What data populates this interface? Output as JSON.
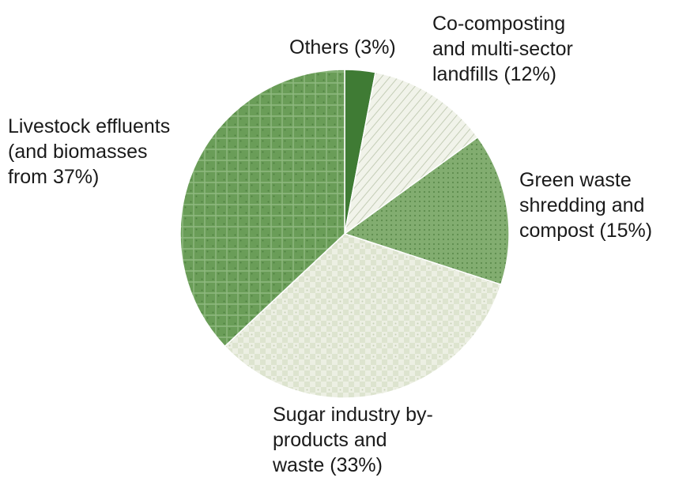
{
  "chart_data": {
    "type": "pie",
    "slices": [
      {
        "label_lines": [
          "Others (3%)"
        ],
        "category": "Others",
        "value": 3,
        "color": "#3f7b34"
      },
      {
        "label_lines": [
          "Co-composting",
          "and multi-sector",
          "landfills (12%)"
        ],
        "category": "Co-composting and multi-sector landfills",
        "value": 12,
        "color": "#eef1e6"
      },
      {
        "label_lines": [
          "Green waste",
          "shredding and",
          "compost (15%)"
        ],
        "category": "Green waste shredding and compost",
        "value": 15,
        "color": "#79a667"
      },
      {
        "label_lines": [
          "Sugar industry by-",
          "products and",
          "waste (33%)"
        ],
        "category": "Sugar industry by-products and waste",
        "value": 33,
        "color": "#e7ecdc"
      },
      {
        "label_lines": [
          "Livestock effluents",
          "(and biomasses",
          "from 37%)"
        ],
        "category": "Livestock effluents (and biomasses from",
        "value": 37,
        "color": "#6c9f5b"
      }
    ]
  }
}
